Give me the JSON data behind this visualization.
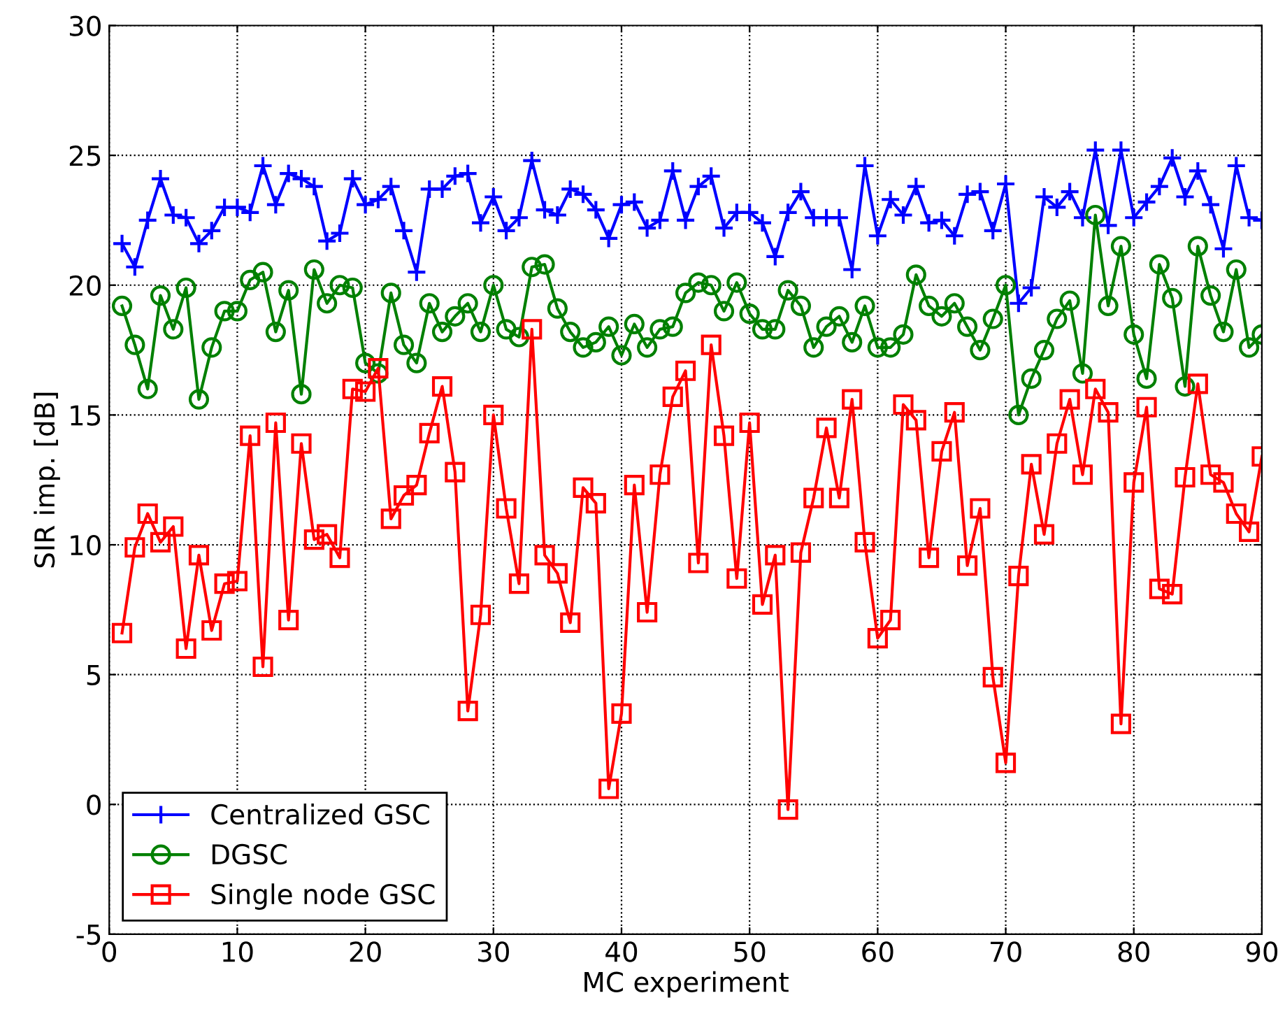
{
  "chart_data": {
    "type": "line",
    "xlabel": "MC experiment",
    "ylabel": "SIR imp. [dB]",
    "x": [
      1,
      2,
      3,
      4,
      5,
      6,
      7,
      8,
      9,
      10,
      11,
      12,
      13,
      14,
      15,
      16,
      17,
      18,
      19,
      20,
      21,
      22,
      23,
      24,
      25,
      26,
      27,
      28,
      29,
      30,
      31,
      32,
      33,
      34,
      35,
      36,
      37,
      38,
      39,
      40,
      41,
      42,
      43,
      44,
      45,
      46,
      47,
      48,
      49,
      50,
      51,
      52,
      53,
      54,
      55,
      56,
      57,
      58,
      59,
      60,
      61,
      62,
      63,
      64,
      65,
      66,
      67,
      68,
      69,
      70,
      71,
      72,
      73,
      74,
      75,
      76,
      77,
      78,
      79,
      80,
      81,
      82,
      83,
      84,
      85,
      86,
      87,
      88,
      89,
      90
    ],
    "series": [
      {
        "name": "Centralized GSC",
        "color": "#0000ff",
        "marker": "cross",
        "values": [
          21.6,
          20.7,
          22.5,
          24.1,
          22.7,
          22.6,
          21.6,
          22.1,
          23.0,
          23.0,
          22.8,
          24.6,
          23.1,
          24.3,
          24.1,
          23.8,
          21.7,
          22.0,
          24.1,
          23.1,
          23.3,
          23.8,
          22.1,
          20.5,
          23.7,
          23.7,
          24.2,
          24.3,
          22.4,
          23.4,
          22.1,
          22.6,
          24.8,
          22.9,
          22.7,
          23.7,
          23.5,
          22.9,
          21.8,
          23.1,
          23.2,
          22.2,
          22.5,
          24.4,
          22.5,
          23.8,
          24.2,
          22.2,
          22.8,
          22.8,
          22.4,
          21.1,
          22.8,
          23.6,
          22.6,
          22.6,
          22.6,
          20.6,
          24.6,
          21.9,
          23.3,
          22.7,
          23.8,
          22.4,
          22.5,
          21.9,
          23.5,
          23.6,
          22.1,
          23.9,
          19.3,
          19.9,
          23.4,
          23.0,
          23.6,
          22.6,
          25.2,
          22.3,
          25.2,
          22.6,
          23.2,
          23.8,
          24.9,
          23.4,
          24.4,
          23.1,
          21.4,
          24.6,
          22.6,
          22.5
        ]
      },
      {
        "name": "DGSC",
        "color": "#008000",
        "marker": "circle",
        "values": [
          19.2,
          17.7,
          16.0,
          19.6,
          18.3,
          19.9,
          15.6,
          17.6,
          19.0,
          19.0,
          20.2,
          20.5,
          18.2,
          19.8,
          15.8,
          20.6,
          19.3,
          20.0,
          19.9,
          17.0,
          16.6,
          19.7,
          17.7,
          17.0,
          19.3,
          18.2,
          18.8,
          19.3,
          18.2,
          20.0,
          18.3,
          18.0,
          20.7,
          20.8,
          19.1,
          18.2,
          17.6,
          17.8,
          18.4,
          17.3,
          18.5,
          17.6,
          18.3,
          18.4,
          19.7,
          20.1,
          20.0,
          19.0,
          20.1,
          18.9,
          18.3,
          18.3,
          19.8,
          19.2,
          17.6,
          18.4,
          18.8,
          17.8,
          19.2,
          17.6,
          17.6,
          18.1,
          20.4,
          19.2,
          18.8,
          19.3,
          18.4,
          17.5,
          18.7,
          20.0,
          15.0,
          16.4,
          17.5,
          18.7,
          19.4,
          16.6,
          22.7,
          19.2,
          21.5,
          18.1,
          16.4,
          20.8,
          19.5,
          16.1,
          21.5,
          19.6,
          18.2,
          20.6,
          17.6,
          18.1
        ]
      },
      {
        "name": "Single node GSC",
        "color": "#ff0000",
        "marker": "square",
        "values": [
          6.6,
          9.9,
          11.2,
          10.1,
          10.7,
          6.0,
          9.6,
          6.7,
          8.5,
          8.6,
          14.2,
          5.3,
          14.7,
          7.1,
          13.9,
          10.2,
          10.4,
          9.5,
          16.0,
          15.9,
          16.8,
          11.0,
          11.9,
          12.3,
          14.3,
          16.1,
          12.8,
          3.6,
          7.3,
          15.0,
          11.4,
          8.5,
          18.3,
          9.6,
          8.9,
          7.0,
          12.2,
          11.6,
          0.6,
          3.5,
          12.3,
          7.4,
          12.7,
          15.7,
          16.7,
          9.3,
          17.7,
          14.2,
          8.7,
          14.7,
          7.7,
          9.6,
          -0.2,
          9.7,
          11.8,
          14.5,
          11.8,
          15.6,
          10.1,
          6.4,
          7.1,
          15.4,
          14.8,
          9.5,
          13.6,
          15.1,
          9.2,
          11.4,
          4.9,
          1.6,
          8.8,
          13.1,
          10.4,
          13.9,
          15.6,
          12.7,
          16.0,
          15.1,
          3.1,
          12.4,
          15.3,
          8.3,
          8.1,
          12.6,
          16.2,
          12.7,
          12.4,
          11.2,
          10.5,
          13.4
        ]
      }
    ],
    "xlim": [
      0,
      90
    ],
    "xticks": [
      0,
      10,
      20,
      30,
      40,
      50,
      60,
      70,
      80,
      90
    ],
    "ylim": [
      -5,
      30
    ],
    "yticks": [
      -5,
      0,
      5,
      10,
      15,
      20,
      25,
      30
    ],
    "grid": true,
    "legend": "bottom left",
    "line_style": "solid"
  }
}
